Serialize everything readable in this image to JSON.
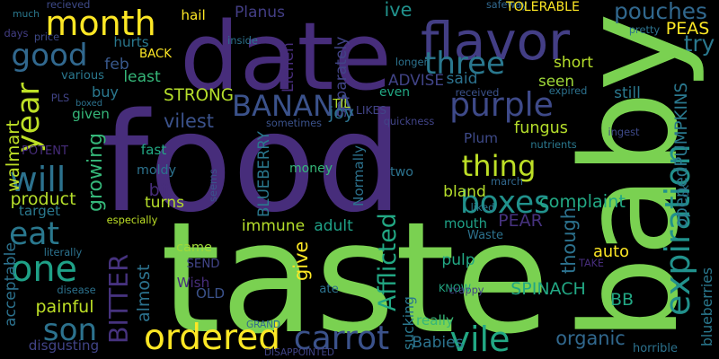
{
  "words": [
    {
      "text": "food",
      "color": "#472d7b"
    },
    {
      "text": "taste",
      "color": "#7ad151"
    },
    {
      "text": "date",
      "color": "#472d7b"
    },
    {
      "text": "baby",
      "color": "#7ad151"
    },
    {
      "text": "flavor",
      "color": "#433e85"
    },
    {
      "text": "month",
      "color": "#fde725"
    },
    {
      "text": "good",
      "color": "#31688e"
    },
    {
      "text": "year",
      "color": "#bddf26"
    },
    {
      "text": "three",
      "color": "#2a788e"
    },
    {
      "text": "BANANA",
      "color": "#3b528b"
    },
    {
      "text": "purple",
      "color": "#3e4a89"
    },
    {
      "text": "thing",
      "color": "#bddf26"
    },
    {
      "text": "expiration",
      "color": "#21918c"
    },
    {
      "text": "boxes",
      "color": "#21918c"
    },
    {
      "text": "will",
      "color": "#2c728e"
    },
    {
      "text": "eat",
      "color": "#2a788e"
    },
    {
      "text": "one",
      "color": "#1fa187"
    },
    {
      "text": "son",
      "color": "#2c728e"
    },
    {
      "text": "ordered",
      "color": "#fde725"
    },
    {
      "text": "carrot",
      "color": "#3b528b"
    },
    {
      "text": "vile",
      "color": "#22a884"
    },
    {
      "text": "BITTER",
      "color": "#46327e"
    },
    {
      "text": "pouches",
      "color": "#31688e"
    },
    {
      "text": "try",
      "color": "#2a788e"
    },
    {
      "text": "PEAS",
      "color": "#fde725"
    },
    {
      "text": "joy",
      "color": "#2c728e"
    },
    {
      "text": "ive",
      "color": "#21918c"
    },
    {
      "text": "hail",
      "color": "#fde725"
    },
    {
      "text": "Planus",
      "color": "#433e85"
    },
    {
      "text": "hurts",
      "color": "#2a788e"
    },
    {
      "text": "feb",
      "color": "#38588c"
    },
    {
      "text": "least",
      "color": "#35b779"
    },
    {
      "text": "buy",
      "color": "#2a788e"
    },
    {
      "text": "STRONG",
      "color": "#b5de2b"
    },
    {
      "text": "vilest",
      "color": "#3b528b"
    },
    {
      "text": "given",
      "color": "#35b779"
    },
    {
      "text": "LIKES",
      "color": "#414487"
    },
    {
      "text": "ADVISE",
      "color": "#414487"
    },
    {
      "text": "said",
      "color": "#2c728e"
    },
    {
      "text": "seen",
      "color": "#a0da39"
    },
    {
      "text": "short",
      "color": "#b5de2b"
    },
    {
      "text": "still",
      "color": "#2a788e"
    },
    {
      "text": "fungus",
      "color": "#b5de2b"
    },
    {
      "text": "Plum",
      "color": "#3e4a89"
    },
    {
      "text": "nutrients",
      "color": "#2a788e"
    },
    {
      "text": "ingest",
      "color": "#3e4a89"
    },
    {
      "text": "complaint",
      "color": "#22a884"
    },
    {
      "text": "though",
      "color": "#2c728e"
    },
    {
      "text": "PEAR",
      "color": "#46327e"
    },
    {
      "text": "mouth",
      "color": "#1fa187"
    },
    {
      "text": "adult",
      "color": "#1fa187"
    },
    {
      "text": "immune",
      "color": "#b5de2b"
    },
    {
      "text": "turns",
      "color": "#b5de2b"
    },
    {
      "text": "growing",
      "color": "#35b779"
    },
    {
      "text": "product",
      "color": "#b5de2b"
    },
    {
      "text": "walmart",
      "color": "#bddf26"
    },
    {
      "text": "target",
      "color": "#2a788e"
    },
    {
      "text": "acceptable",
      "color": "#2c728e"
    },
    {
      "text": "painful",
      "color": "#bddf26"
    },
    {
      "text": "almost",
      "color": "#2c728e"
    },
    {
      "text": "fast",
      "color": "#22a884"
    },
    {
      "text": "moldy",
      "color": "#2c728e"
    },
    {
      "text": "bit",
      "color": "#472d7b"
    },
    {
      "text": "money",
      "color": "#35b779"
    },
    {
      "text": "two",
      "color": "#2c728e"
    },
    {
      "text": "bland",
      "color": "#b5de2b"
    },
    {
      "text": "came",
      "color": "#a0da39"
    },
    {
      "text": "SEND",
      "color": "#414487"
    },
    {
      "text": "give",
      "color": "#fde725"
    },
    {
      "text": "pulp",
      "color": "#22a884"
    },
    {
      "text": "auto",
      "color": "#fde725"
    },
    {
      "text": "BB",
      "color": "#22a884"
    },
    {
      "text": "SPINACH",
      "color": "#22a884"
    },
    {
      "text": "organic",
      "color": "#31688e"
    },
    {
      "text": "Afflicted",
      "color": "#22a884"
    },
    {
      "text": "KNOW",
      "color": "#22a884"
    },
    {
      "text": "sucking",
      "color": "#2a788e"
    },
    {
      "text": "really",
      "color": "#35b779"
    },
    {
      "text": "Babies",
      "color": "#2c728e"
    },
    {
      "text": "disgusting",
      "color": "#414487"
    },
    {
      "text": "OLD",
      "color": "#3b528b"
    },
    {
      "text": "Wish",
      "color": "#472d7b"
    },
    {
      "text": "ate",
      "color": "#2c728e"
    },
    {
      "text": "recieved",
      "color": "#3e4a89"
    },
    {
      "text": "much",
      "color": "#2a788e"
    },
    {
      "text": "days",
      "color": "#433e85"
    },
    {
      "text": "price",
      "color": "#3e4a89"
    },
    {
      "text": "BACK",
      "color": "#fde725"
    },
    {
      "text": "inside",
      "color": "#2c728e"
    },
    {
      "text": "Lichen",
      "color": "#472d7b"
    },
    {
      "text": "separately",
      "color": "#414487"
    },
    {
      "text": "safeway",
      "color": "#31688e"
    },
    {
      "text": "TOLERABLE",
      "color": "#fde725"
    },
    {
      "text": "pretty",
      "color": "#2c728e"
    },
    {
      "text": "longer",
      "color": "#2c728e"
    },
    {
      "text": "TIL",
      "color": "#b5de2b"
    },
    {
      "text": "even",
      "color": "#22a884"
    },
    {
      "text": "received",
      "color": "#3b528b"
    },
    {
      "text": "expired",
      "color": "#2c728e"
    },
    {
      "text": "various",
      "color": "#2a788e"
    },
    {
      "text": "PLS",
      "color": "#414487"
    },
    {
      "text": "boxed",
      "color": "#2c728e"
    },
    {
      "text": "sometimes",
      "color": "#3b528b"
    },
    {
      "text": "quickness",
      "color": "#414487"
    },
    {
      "text": "BLUEBERRY",
      "color": "#2a788e"
    },
    {
      "text": "Normally",
      "color": "#2c728e"
    },
    {
      "text": "POTENT",
      "color": "#472d7b"
    },
    {
      "text": "seems",
      "color": "#3b528b"
    },
    {
      "text": "march",
      "color": "#31688e"
    },
    {
      "text": "liked",
      "color": "#2a788e"
    },
    {
      "text": "Waste",
      "color": "#2c728e"
    },
    {
      "text": "especially",
      "color": "#bddf26"
    },
    {
      "text": "literally",
      "color": "#2c728e"
    },
    {
      "text": "disease",
      "color": "#2c728e"
    },
    {
      "text": "TAKE",
      "color": "#472d7b"
    },
    {
      "text": "crappy",
      "color": "#414487"
    },
    {
      "text": "GRAND",
      "color": "#31688e"
    },
    {
      "text": "DISAPPOINTED",
      "color": "#414487"
    },
    {
      "text": "horrible",
      "color": "#2c728e"
    },
    {
      "text": "openedPUMPKINS",
      "color": "#2a788e"
    },
    {
      "text": "ok",
      "color": "#2c728e"
    },
    {
      "text": "blueberries",
      "color": "#2a788e"
    }
  ]
}
